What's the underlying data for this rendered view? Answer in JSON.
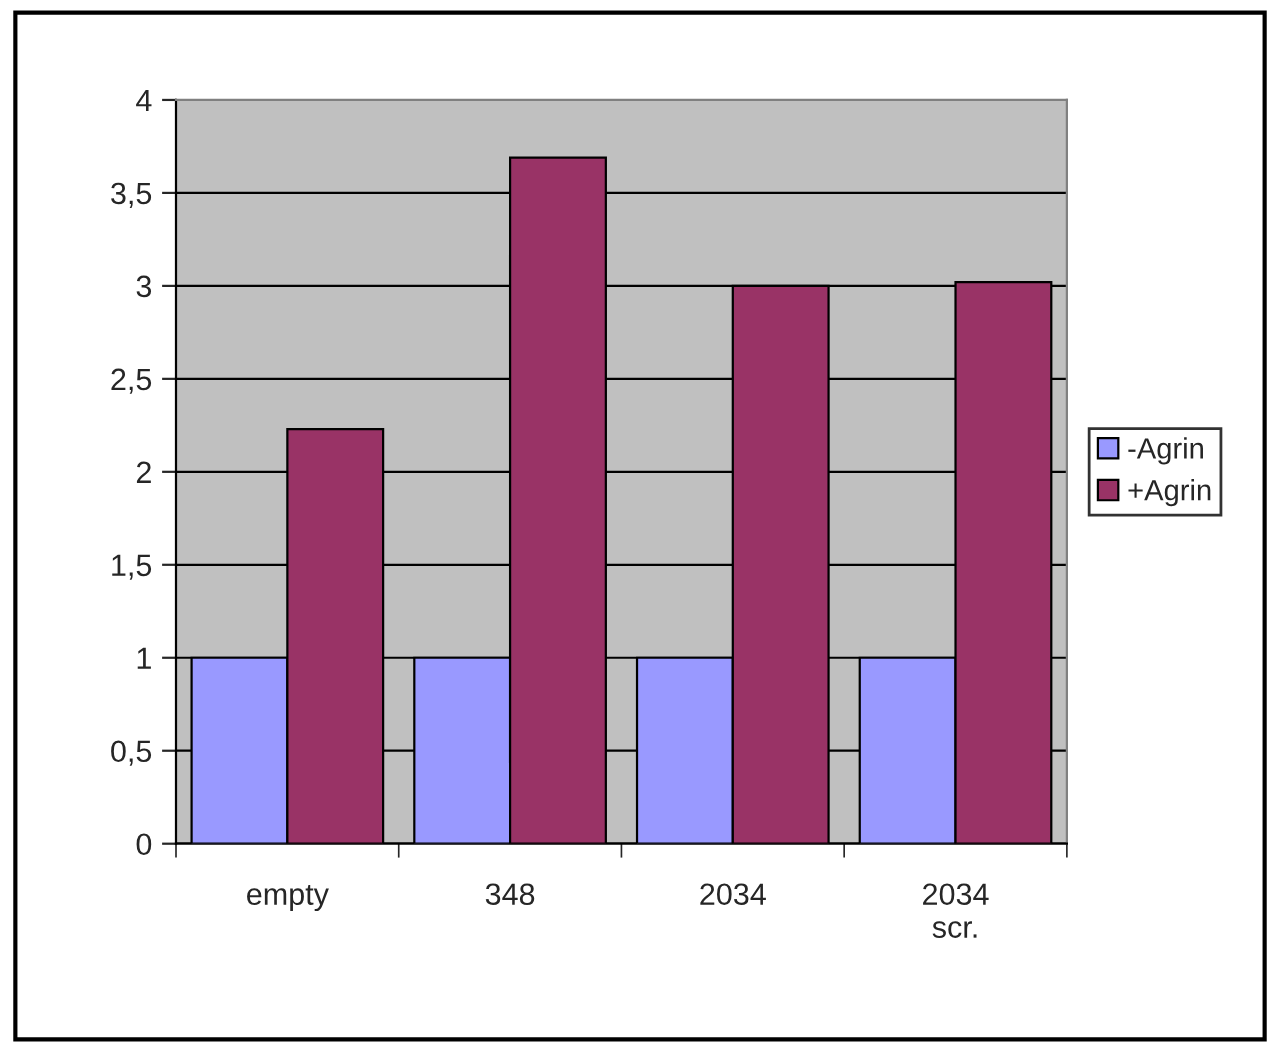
{
  "chart_data": {
    "type": "bar",
    "categories": [
      "empty",
      "348",
      "2034",
      "2034 scr."
    ],
    "series": [
      {
        "name": "-Agrin",
        "color": "#9999ff",
        "values": [
          1,
          1,
          1,
          1
        ]
      },
      {
        "name": "+Agrin",
        "color": "#993366",
        "values": [
          2.23,
          3.69,
          3.0,
          3.02
        ]
      }
    ],
    "ylim": [
      0,
      4
    ],
    "yticks": [
      0,
      {
        "value": 0.5,
        "label": "0,5"
      },
      1,
      {
        "value": 1.5,
        "label": "1,5"
      },
      2,
      {
        "value": 2.5,
        "label": "2,5"
      },
      3,
      {
        "value": 3.5,
        "label": "3,5"
      },
      4
    ],
    "grid": "y",
    "legend": "right"
  }
}
